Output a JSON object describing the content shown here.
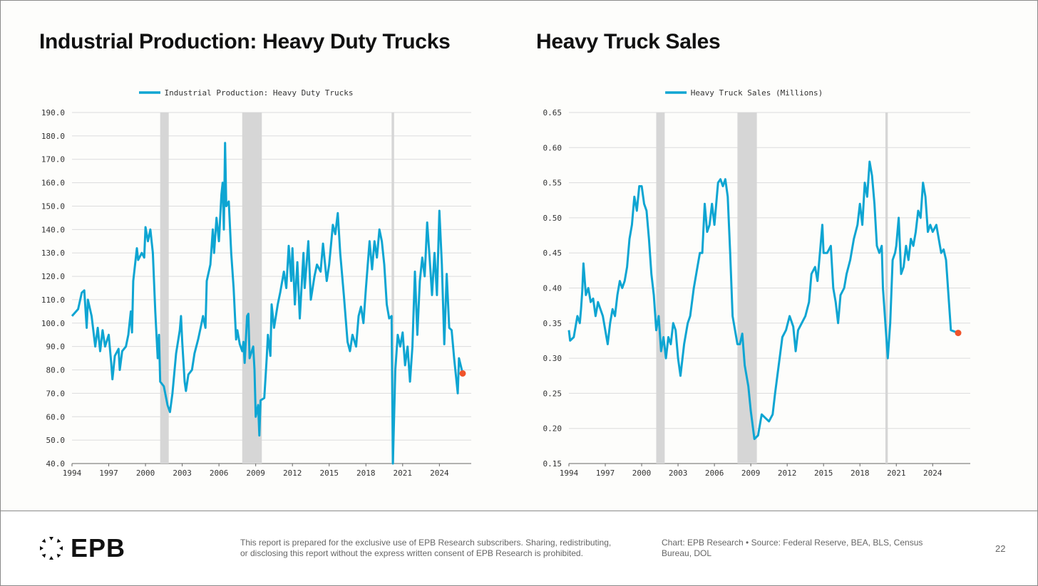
{
  "chart_data": [
    {
      "type": "line",
      "title": "Industrial Production: Heavy Duty Trucks",
      "legend": "Industrial Production: Heavy Duty Trucks",
      "legend_position": "top-center",
      "ylim": [
        40,
        190
      ],
      "yticks": [
        190,
        180,
        170,
        160,
        150,
        140,
        130,
        120,
        110,
        100,
        90,
        80,
        70,
        60,
        50,
        40
      ],
      "ytick_labels": [
        "190.0",
        "180.0",
        "170.0",
        "160.0",
        "150.0",
        "140.0",
        "130.0",
        "120.0",
        "110.0",
        "100.0",
        "90.0",
        "80.0",
        "70.0",
        "60.0",
        "50.0",
        "40.0"
      ],
      "xlim": [
        1994,
        2026.6
      ],
      "xticks": [
        1994,
        1997,
        2000,
        2003,
        2006,
        2009,
        2012,
        2015,
        2018,
        2021,
        2024
      ],
      "xtick_labels": [
        "1994",
        "1997",
        "2000",
        "2003",
        "2006",
        "2009",
        "2012",
        "2015",
        "2018",
        "2021",
        "2024"
      ],
      "grid": true,
      "recessions": [
        [
          2001.2,
          2001.9
        ],
        [
          2007.9,
          2009.5
        ],
        [
          2020.1,
          2020.3
        ]
      ],
      "line_color": "#0ea5d2",
      "point_color": "#f0532a",
      "x": [
        1994.0,
        1994.5,
        1994.8,
        1995.0,
        1995.2,
        1995.3,
        1995.6,
        1995.9,
        1996.1,
        1996.3,
        1996.5,
        1996.7,
        1997.0,
        1997.2,
        1997.3,
        1997.5,
        1997.8,
        1997.9,
        1998.1,
        1998.4,
        1998.6,
        1998.8,
        1998.9,
        1999.0,
        1999.3,
        1999.4,
        1999.7,
        1999.9,
        2000.0,
        2000.2,
        2000.4,
        2000.6,
        2000.8,
        2001.0,
        2001.1,
        2001.2,
        2001.5,
        2001.8,
        2002.0,
        2002.2,
        2002.5,
        2002.8,
        2002.9,
        2003.0,
        2003.2,
        2003.3,
        2003.5,
        2003.8,
        2004.0,
        2004.3,
        2004.5,
        2004.7,
        2004.9,
        2005.0,
        2005.3,
        2005.5,
        2005.6,
        2005.8,
        2006.0,
        2006.2,
        2006.3,
        2006.4,
        2006.5,
        2006.6,
        2006.8,
        2007.0,
        2007.2,
        2007.4,
        2007.5,
        2007.7,
        2007.9,
        2008.0,
        2008.1,
        2008.3,
        2008.4,
        2008.5,
        2008.8,
        2008.9,
        2009.0,
        2009.2,
        2009.3,
        2009.4,
        2009.7,
        2009.9,
        2010.0,
        2010.2,
        2010.3,
        2010.5,
        2010.8,
        2011.0,
        2011.3,
        2011.5,
        2011.7,
        2011.9,
        2012.0,
        2012.2,
        2012.4,
        2012.6,
        2012.9,
        2013.0,
        2013.3,
        2013.5,
        2013.8,
        2014.0,
        2014.3,
        2014.5,
        2014.8,
        2015.0,
        2015.3,
        2015.5,
        2015.7,
        2015.9,
        2016.2,
        2016.5,
        2016.7,
        2016.9,
        2017.2,
        2017.4,
        2017.6,
        2017.8,
        2018.0,
        2018.3,
        2018.5,
        2018.7,
        2018.9,
        2019.1,
        2019.3,
        2019.5,
        2019.7,
        2019.9,
        2020.1,
        2020.2,
        2020.4,
        2020.6,
        2020.8,
        2021.0,
        2021.2,
        2021.4,
        2021.6,
        2021.8,
        2022.0,
        2022.2,
        2022.4,
        2022.6,
        2022.8,
        2023.0,
        2023.2,
        2023.4,
        2023.6,
        2023.8,
        2024.0,
        2024.2,
        2024.4,
        2024.6,
        2024.8,
        2025.0,
        2025.2,
        2025.4,
        2025.5,
        2025.6,
        2025.9
      ],
      "values": [
        103,
        106,
        113,
        114,
        98,
        110,
        103,
        90,
        98,
        88,
        97,
        90,
        95,
        83,
        76,
        86,
        89,
        80,
        88,
        90,
        95,
        105,
        96,
        118,
        132,
        127,
        130,
        128,
        141,
        135,
        140,
        130,
        105,
        85,
        95,
        75,
        73,
        65,
        62,
        70,
        87,
        97,
        103,
        92,
        75,
        71,
        78,
        80,
        87,
        93,
        98,
        103,
        98,
        118,
        125,
        140,
        130,
        145,
        135,
        155,
        160,
        140,
        177,
        150,
        152,
        130,
        115,
        93,
        97,
        91,
        88,
        92,
        83,
        103,
        104,
        85,
        90,
        80,
        60,
        65,
        52,
        67,
        68,
        85,
        95,
        86,
        108,
        98,
        108,
        113,
        122,
        115,
        133,
        118,
        132,
        108,
        126,
        102,
        130,
        115,
        135,
        110,
        120,
        125,
        122,
        134,
        118,
        125,
        142,
        138,
        147,
        130,
        112,
        92,
        88,
        95,
        90,
        103,
        107,
        100,
        115,
        135,
        123,
        135,
        128,
        140,
        135,
        125,
        108,
        102,
        103,
        40,
        80,
        95,
        90,
        96,
        82,
        90,
        75,
        90,
        122,
        95,
        118,
        128,
        120,
        143,
        128,
        112,
        130,
        112,
        148,
        125,
        91,
        121,
        98,
        97,
        85,
        75,
        70,
        85,
        78.5
      ]
    },
    {
      "type": "line",
      "title": "Heavy Truck Sales",
      "legend": "Heavy Truck Sales (Millions)",
      "legend_position": "top-center",
      "ylim": [
        0.15,
        0.65
      ],
      "yticks": [
        0.65,
        0.6,
        0.55,
        0.5,
        0.45,
        0.4,
        0.35,
        0.3,
        0.25,
        0.2,
        0.15
      ],
      "ytick_labels": [
        "0.65",
        "0.60",
        "0.55",
        "0.50",
        "0.45",
        "0.40",
        "0.35",
        "0.30",
        "0.25",
        "0.20",
        "0.15"
      ],
      "xlim": [
        1994,
        2027.1
      ],
      "xticks": [
        1994,
        1997,
        2000,
        2003,
        2006,
        2009,
        2012,
        2015,
        2018,
        2021,
        2024
      ],
      "xtick_labels": [
        "1994",
        "1997",
        "2000",
        "2003",
        "2006",
        "2009",
        "2012",
        "2015",
        "2018",
        "2021",
        "2024"
      ],
      "grid": true,
      "recessions": [
        [
          2001.2,
          2001.9
        ],
        [
          2007.9,
          2009.5
        ],
        [
          2020.1,
          2020.3
        ]
      ],
      "line_color": "#0ea5d2",
      "point_color": "#f0532a",
      "x": [
        1994.0,
        1994.1,
        1994.4,
        1994.7,
        1994.9,
        1995.0,
        1995.1,
        1995.2,
        1995.4,
        1995.6,
        1995.8,
        1996.0,
        1996.2,
        1996.4,
        1996.6,
        1996.8,
        1997.0,
        1997.2,
        1997.4,
        1997.6,
        1997.8,
        1998.0,
        1998.2,
        1998.4,
        1998.6,
        1998.8,
        1999.0,
        1999.2,
        1999.4,
        1999.6,
        1999.8,
        2000.0,
        2000.2,
        2000.4,
        2000.6,
        2000.8,
        2001.0,
        2001.2,
        2001.4,
        2001.6,
        2001.8,
        2002.0,
        2002.2,
        2002.4,
        2002.6,
        2002.8,
        2003.0,
        2003.2,
        2003.5,
        2003.8,
        2004.0,
        2004.3,
        2004.6,
        2004.8,
        2005.0,
        2005.2,
        2005.4,
        2005.6,
        2005.8,
        2006.0,
        2006.3,
        2006.5,
        2006.7,
        2006.9,
        2007.1,
        2007.3,
        2007.5,
        2007.7,
        2007.9,
        2008.1,
        2008.3,
        2008.5,
        2008.8,
        2009.0,
        2009.3,
        2009.6,
        2009.9,
        2010.2,
        2010.5,
        2010.8,
        2011.0,
        2011.3,
        2011.6,
        2011.9,
        2012.2,
        2012.5,
        2012.7,
        2012.9,
        2013.2,
        2013.5,
        2013.8,
        2014.0,
        2014.3,
        2014.5,
        2014.8,
        2014.9,
        2015.0,
        2015.3,
        2015.6,
        2015.8,
        2016.0,
        2016.2,
        2016.4,
        2016.7,
        2016.9,
        2017.2,
        2017.5,
        2017.8,
        2018.0,
        2018.2,
        2018.4,
        2018.6,
        2018.8,
        2019.0,
        2019.2,
        2019.4,
        2019.6,
        2019.8,
        2019.9,
        2020.1,
        2020.3,
        2020.5,
        2020.7,
        2020.9,
        2021.0,
        2021.2,
        2021.4,
        2021.6,
        2021.8,
        2022.0,
        2022.2,
        2022.4,
        2022.6,
        2022.8,
        2023.0,
        2023.2,
        2023.4,
        2023.6,
        2023.8,
        2024.0,
        2024.3,
        2024.5,
        2024.7,
        2024.9,
        2025.1,
        2025.3,
        2025.5,
        2026.1
      ],
      "values": [
        0.34,
        0.325,
        0.33,
        0.36,
        0.35,
        0.37,
        0.395,
        0.435,
        0.39,
        0.4,
        0.38,
        0.385,
        0.36,
        0.38,
        0.37,
        0.36,
        0.34,
        0.32,
        0.35,
        0.37,
        0.36,
        0.39,
        0.41,
        0.4,
        0.41,
        0.43,
        0.47,
        0.49,
        0.53,
        0.51,
        0.545,
        0.545,
        0.52,
        0.51,
        0.47,
        0.42,
        0.39,
        0.34,
        0.36,
        0.31,
        0.33,
        0.3,
        0.33,
        0.32,
        0.35,
        0.34,
        0.3,
        0.275,
        0.32,
        0.35,
        0.36,
        0.4,
        0.43,
        0.45,
        0.45,
        0.52,
        0.48,
        0.49,
        0.52,
        0.49,
        0.55,
        0.555,
        0.545,
        0.555,
        0.53,
        0.45,
        0.36,
        0.34,
        0.32,
        0.32,
        0.335,
        0.29,
        0.26,
        0.225,
        0.185,
        0.19,
        0.22,
        0.215,
        0.21,
        0.22,
        0.25,
        0.29,
        0.33,
        0.34,
        0.36,
        0.345,
        0.31,
        0.34,
        0.35,
        0.36,
        0.38,
        0.42,
        0.43,
        0.41,
        0.47,
        0.49,
        0.45,
        0.45,
        0.46,
        0.4,
        0.38,
        0.35,
        0.39,
        0.4,
        0.42,
        0.44,
        0.47,
        0.49,
        0.52,
        0.49,
        0.55,
        0.53,
        0.58,
        0.56,
        0.52,
        0.46,
        0.45,
        0.46,
        0.4,
        0.35,
        0.3,
        0.35,
        0.44,
        0.45,
        0.46,
        0.5,
        0.42,
        0.43,
        0.46,
        0.44,
        0.47,
        0.46,
        0.48,
        0.51,
        0.5,
        0.55,
        0.53,
        0.48,
        0.49,
        0.48,
        0.49,
        0.47,
        0.45,
        0.455,
        0.44,
        0.39,
        0.34,
        0.336
      ]
    }
  ],
  "footer": {
    "logo": "EPB",
    "disclaimer_line1": "This report is prepared for the exclusive use of EPB Research subscribers. Sharing, redistributing,",
    "disclaimer_line2": "or disclosing this report without the express written consent of EPB Research is prohibited.",
    "source_line1": "Chart: EPB Research  •  Source: Federal Reserve, BEA, BLS, Census",
    "source_line2": "Bureau, DOL",
    "page_number": "22"
  }
}
